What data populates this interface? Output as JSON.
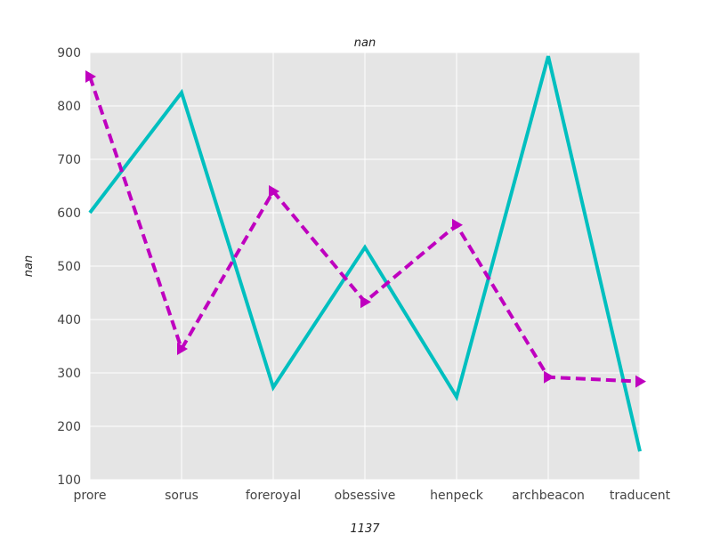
{
  "chart_data": {
    "type": "line",
    "title": "nan",
    "xlabel": "1137",
    "ylabel": "nan",
    "categories": [
      "prore",
      "sorus",
      "foreroyal",
      "obsessive",
      "henpeck",
      "archbeacon",
      "traducent"
    ],
    "ylim": [
      100,
      900
    ],
    "yticks": [
      100,
      200,
      300,
      400,
      500,
      600,
      700,
      800,
      900
    ],
    "grid": true,
    "legend": "none",
    "series": [
      {
        "values": [
          600,
          825,
          273,
          535,
          255,
          893,
          153
        ],
        "color": "#00bfbf",
        "style": "solid",
        "marker": "none"
      },
      {
        "values": [
          855,
          345,
          640,
          433,
          577,
          292,
          284
        ],
        "color": "#bf00bf",
        "style": "dashed",
        "marker": "triangle-right"
      }
    ],
    "colors": {
      "plot_background": "#e5e5e5",
      "grid": "#ffffff"
    }
  }
}
